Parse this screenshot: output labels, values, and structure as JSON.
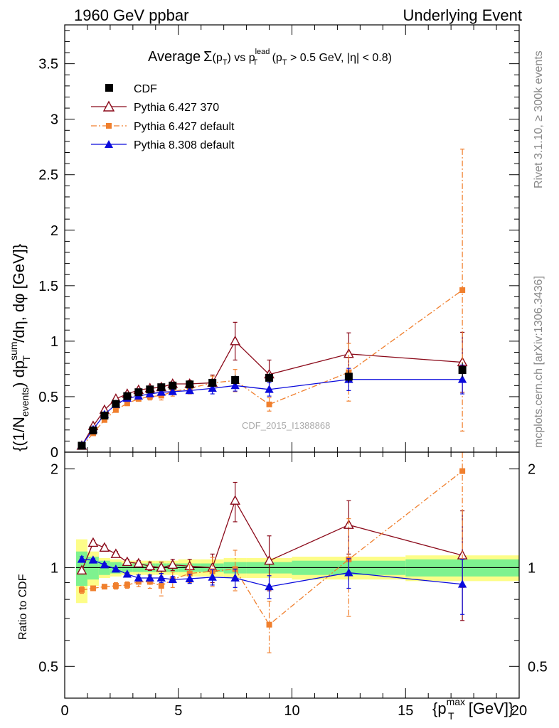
{
  "header": {
    "left": "1960 GeV ppbar",
    "right": "Underlying Event"
  },
  "title": {
    "prefix": "Average",
    "sigma": "Σ",
    "paren": "(p",
    "paren_sub": "T",
    "vs": ") vs p",
    "vs_sup": "lead",
    "vs_sub": "T",
    "cut1": " (p",
    "cut1_sub": "T",
    "cut2": " > 0.5 GeV, |η| < 0.8)"
  },
  "side_texts": {
    "rivet": "Rivet 3.1.10, ≥ 300k events",
    "mcplots": "mcplots.cern.ch [arXiv:1306.3436]"
  },
  "annotation": "CDF_2015_I1388868",
  "ylabel_main": {
    "a": "{(1/N",
    "a_sub": "events",
    "b": ") dp",
    "b_sup": "sum",
    "b_sub": "T",
    "c": "/dη, dφ [GeV]}"
  },
  "ylabel_ratio": "Ratio to CDF",
  "xlabel": {
    "a": "{p",
    "a_sup": "max",
    "a_sub": "T",
    "b": " [GeV]}"
  },
  "colors": {
    "cdf": "#000000",
    "py6_370": "#8b0a1a",
    "py6_default": "#f07f2d",
    "py8": "#0a0adc",
    "band_stat": "#7ef28f",
    "band_tot": "#fdfd88"
  },
  "chart_data": {
    "type": "scatter",
    "x_range": [
      0,
      20
    ],
    "main_y_range": [
      0,
      3.85
    ],
    "ratio_y_range": [
      0.4,
      2.25
    ],
    "ratio_log_scale": true,
    "x_ticks": [
      "0",
      "5",
      "10",
      "15",
      "20"
    ],
    "main_y_ticks": [
      "0",
      "0.5",
      "1",
      "1.5",
      "2",
      "2.5",
      "3",
      "3.5"
    ],
    "ratio_y_ticks": [
      "0.5",
      "1",
      "2"
    ],
    "legend": [
      "CDF",
      "Pythia 6.427 370",
      "Pythia 6.427 default",
      "Pythia 8.308 default"
    ],
    "bins": [
      0.5,
      1.0,
      1.5,
      2.0,
      2.5,
      3.0,
      3.5,
      4.0,
      4.5,
      5.0,
      6.0,
      7.0,
      8.0,
      10.0,
      15.0,
      20.0
    ],
    "x": [
      0.75,
      1.25,
      1.75,
      2.25,
      2.75,
      3.25,
      3.75,
      4.25,
      4.75,
      5.5,
      6.5,
      7.5,
      9.0,
      12.5,
      17.5
    ],
    "cdf_values": [
      0.058,
      0.196,
      0.33,
      0.435,
      0.505,
      0.54,
      0.565,
      0.585,
      0.6,
      0.61,
      0.625,
      0.65,
      0.67,
      0.68,
      0.74
    ],
    "cdf_stat_rel": [
      0.12,
      0.08,
      0.05,
      0.04,
      0.03,
      0.03,
      0.03,
      0.03,
      0.03,
      0.03,
      0.03,
      0.04,
      0.04,
      0.05,
      0.06
    ],
    "cdf_tot_rel": [
      0.22,
      0.12,
      0.07,
      0.06,
      0.05,
      0.05,
      0.05,
      0.05,
      0.05,
      0.06,
      0.06,
      0.07,
      0.07,
      0.08,
      0.09
    ],
    "series": [
      {
        "name": "Pythia 6.427 370",
        "marker": "open-triangle",
        "values": [
          0.057,
          0.235,
          0.38,
          0.48,
          0.525,
          0.56,
          0.575,
          0.585,
          0.615,
          0.615,
          0.625,
          1.0,
          0.7,
          0.885,
          0.81
        ],
        "errors": [
          0.005,
          0.01,
          0.015,
          0.015,
          0.015,
          0.015,
          0.015,
          0.02,
          0.02,
          0.03,
          0.07,
          0.17,
          0.13,
          0.19,
          0.27
        ],
        "ratio": [
          0.98,
          1.19,
          1.15,
          1.1,
          1.04,
          1.03,
          1.01,
          1.0,
          1.02,
          1.01,
          1.0,
          1.6,
          1.05,
          1.35,
          1.09
        ],
        "ratio_errors": [
          0.02,
          0.02,
          0.02,
          0.02,
          0.02,
          0.02,
          0.03,
          0.04,
          0.04,
          0.05,
          0.1,
          0.22,
          0.2,
          0.25,
          0.4
        ]
      },
      {
        "name": "Pythia 6.427 default",
        "marker": "square",
        "values": [
          0.05,
          0.17,
          0.29,
          0.38,
          0.44,
          0.48,
          0.5,
          0.51,
          0.545,
          0.575,
          0.625,
          0.645,
          0.43,
          0.72,
          1.46
        ],
        "errors": [
          0.005,
          0.01,
          0.01,
          0.012,
          0.013,
          0.02,
          0.03,
          0.04,
          0.04,
          0.05,
          0.06,
          0.1,
          0.06,
          0.26,
          1.27
        ],
        "ratio": [
          0.855,
          0.865,
          0.875,
          0.88,
          0.885,
          0.905,
          0.905,
          0.88,
          0.92,
          0.96,
          0.975,
          0.99,
          0.67,
          1.06,
          1.97
        ],
        "ratio_errors": [
          0.02,
          0.01,
          0.01,
          0.02,
          0.02,
          0.03,
          0.04,
          0.06,
          0.05,
          0.06,
          0.1,
          0.14,
          0.12,
          0.35,
          1.1
        ]
      },
      {
        "name": "Pythia 8.308 default",
        "marker": "triangle",
        "values": [
          0.062,
          0.205,
          0.34,
          0.43,
          0.485,
          0.505,
          0.525,
          0.54,
          0.545,
          0.555,
          0.575,
          0.6,
          0.565,
          0.655,
          0.655
        ],
        "errors": [
          0.004,
          0.008,
          0.01,
          0.012,
          0.012,
          0.013,
          0.015,
          0.02,
          0.02,
          0.025,
          0.05,
          0.05,
          0.06,
          0.1,
          0.13
        ],
        "ratio": [
          1.06,
          1.055,
          1.02,
          0.99,
          0.955,
          0.93,
          0.93,
          0.93,
          0.92,
          0.925,
          0.935,
          0.93,
          0.875,
          0.965,
          0.89
        ],
        "ratio_errors": [
          0.02,
          0.01,
          0.01,
          0.01,
          0.01,
          0.02,
          0.02,
          0.03,
          0.02,
          0.03,
          0.05,
          0.06,
          0.07,
          0.1,
          0.17
        ]
      }
    ]
  }
}
